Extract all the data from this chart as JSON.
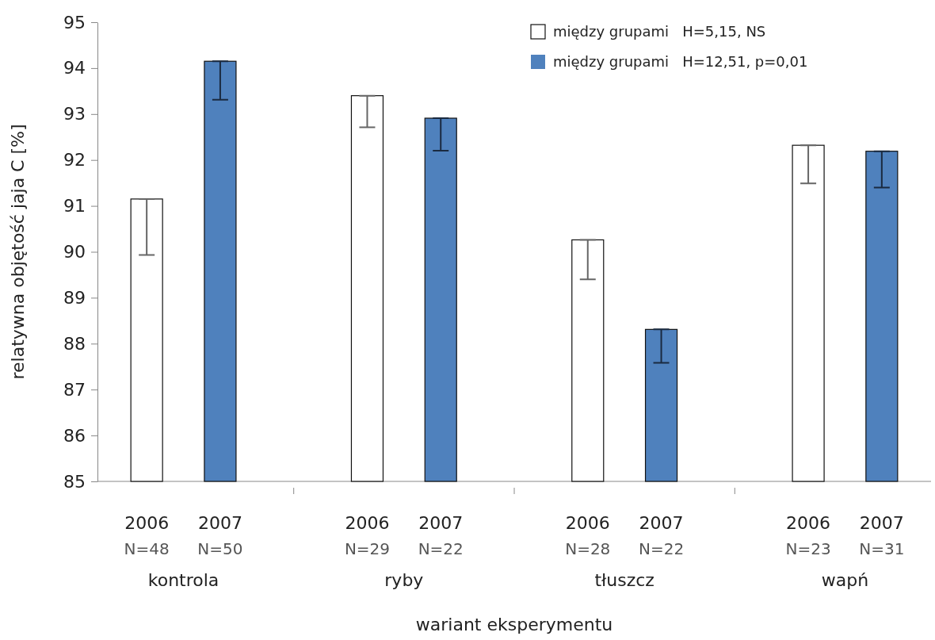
{
  "chart_data": {
    "type": "bar",
    "xlabel": "wariant eksperymentu",
    "ylabel": "relatywna objętość jaja C [%]",
    "categories": [
      "kontrola",
      "ryby",
      "tłuszcz",
      "wapń"
    ],
    "series": [
      {
        "name": "między grupami   H=5,15, NS",
        "color": "#ffffff",
        "values": [
          91.15,
          93.4,
          90.26,
          92.32
        ],
        "errors": [
          [
            89.93,
            91.15
          ],
          [
            92.71,
            93.4
          ],
          [
            89.4,
            90.26
          ],
          [
            91.49,
            92.32
          ]
        ]
      },
      {
        "name": "między grupami   H=12,51, p=0,01",
        "color": "#4f81bd",
        "values": [
          94.15,
          92.91,
          88.31,
          92.19
        ],
        "errors": [
          [
            93.31,
            94.15
          ],
          [
            92.2,
            92.91
          ],
          [
            87.58,
            88.31
          ],
          [
            91.4,
            92.19
          ]
        ]
      }
    ],
    "annotations": [
      "2006\nN=48",
      "2007\nN=50",
      "2006\nN=29",
      "2007\nN=22",
      "2006\nN=28",
      "2007\nN=22",
      "2006\nN=23",
      "2007\nN=31"
    ],
    "ylim": [
      85,
      95
    ],
    "yticks": [
      85,
      86,
      87,
      88,
      89,
      90,
      91,
      92,
      93,
      94,
      95
    ],
    "legend": "top right"
  }
}
